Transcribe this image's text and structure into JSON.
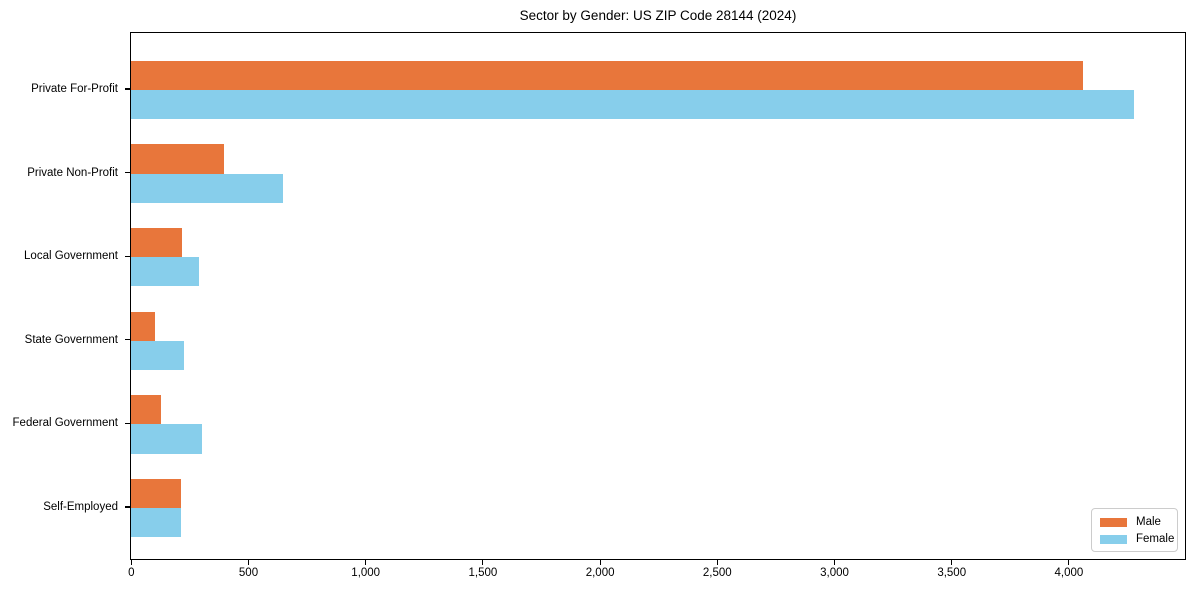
{
  "chart_data": {
    "type": "bar",
    "orientation": "horizontal",
    "title": "Sector by Gender: US ZIP Code 28144 (2024)",
    "categories": [
      "Private For-Profit",
      "Private Non-Profit",
      "Local Government",
      "State Government",
      "Federal Government",
      "Self-Employed"
    ],
    "series": [
      {
        "name": "Male",
        "color": "#e8763b",
        "values": [
          4060,
          395,
          216,
          103,
          129,
          213
        ]
      },
      {
        "name": "Female",
        "color": "#87ceeb",
        "values": [
          4280,
          648,
          291,
          227,
          302,
          213
        ]
      }
    ],
    "xlabel": "",
    "ylabel": "",
    "xlim": [
      0,
      4494
    ],
    "xticks": [
      0,
      500,
      1000,
      1500,
      2000,
      2500,
      3000,
      3500,
      4000
    ],
    "xtick_labels": [
      "0",
      "500",
      "1,000",
      "1,500",
      "2,000",
      "2,500",
      "3,000",
      "3,500",
      "4,000"
    ],
    "grid": false,
    "legend": {
      "position": "lower right"
    }
  }
}
